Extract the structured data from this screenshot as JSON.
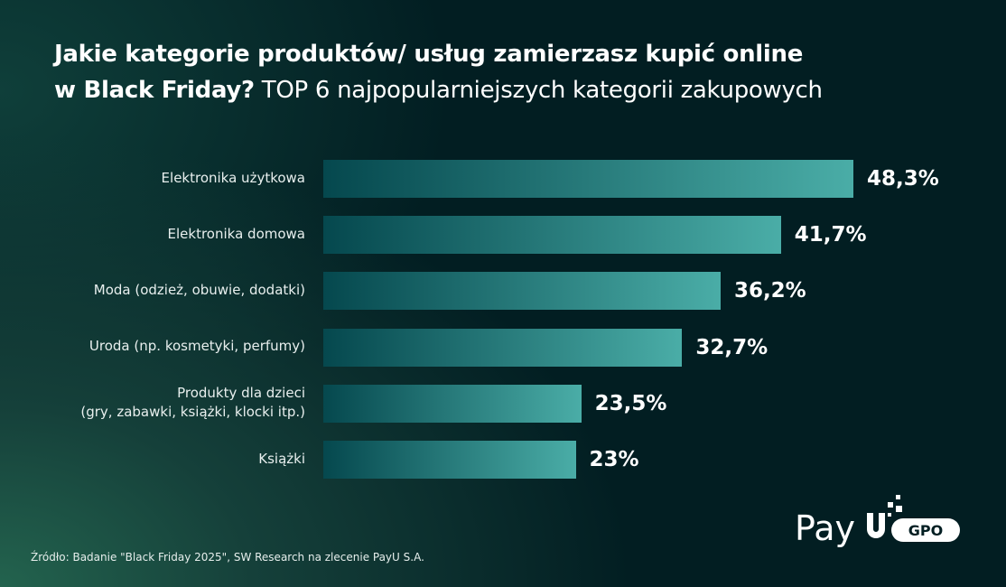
{
  "title": {
    "line1": "Jakie kategorie produktów/ usług zamierzasz kupić online",
    "line2_bold": "w Black Friday?",
    "line2_rest": " TOP 6 najpopularniejszych kategorii zakupowych"
  },
  "chart_data": {
    "type": "bar",
    "orientation": "horizontal",
    "categories": [
      "Elektronika użytkowa",
      "Elektronika domowa",
      "Moda (odzież, obuwie, dodatki)",
      "Uroda (np. kosmetyki, perfumy)",
      "Produkty dla dzieci\n(gry, zabawki, książki, klocki itp.)",
      "Książki"
    ],
    "values": [
      48.3,
      41.7,
      36.2,
      32.7,
      23.5,
      23
    ],
    "data_labels": [
      "48,3%",
      "41,7%",
      "36,2%",
      "32,7%",
      "23,5%",
      "23%"
    ],
    "unit": "%",
    "grid": false,
    "bar_gradient": [
      "#05484e",
      "#4aada7"
    ]
  },
  "source": "Źródło: Badanie \"Black Friday 2025\", SW Research na zlecenie PayU S.A.",
  "logo": {
    "text": "PayU",
    "badge": "GPO"
  }
}
